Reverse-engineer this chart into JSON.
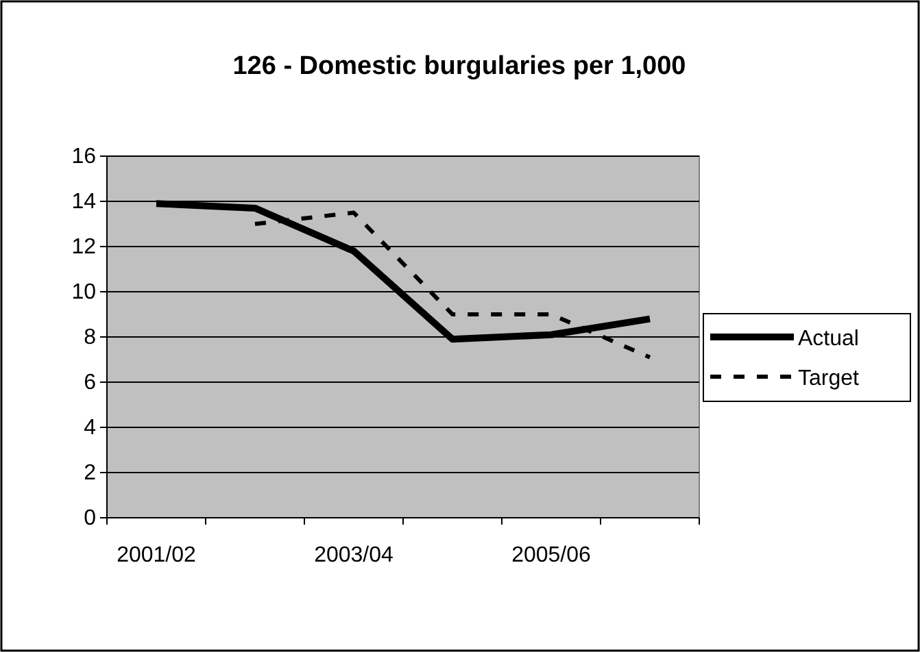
{
  "chart_data": {
    "type": "line",
    "title": "126 - Domestic burgularies per 1,000",
    "categories": [
      "2001/02",
      null,
      "2003/04",
      null,
      "2005/06",
      null
    ],
    "series": [
      {
        "name": "Actual",
        "color": "#000000",
        "line_style": "solid",
        "values": [
          13.9,
          13.7,
          11.8,
          7.9,
          8.1,
          8.8
        ]
      },
      {
        "name": "Target",
        "color": "#000000",
        "line_style": "dashed",
        "values": [
          null,
          13.0,
          13.5,
          9.0,
          9.0,
          7.1
        ]
      }
    ],
    "ylim": [
      0,
      16
    ],
    "yticks": [
      0,
      2,
      4,
      6,
      8,
      10,
      12,
      14,
      16
    ],
    "grid": "y",
    "legend": "right",
    "marker": "none"
  }
}
